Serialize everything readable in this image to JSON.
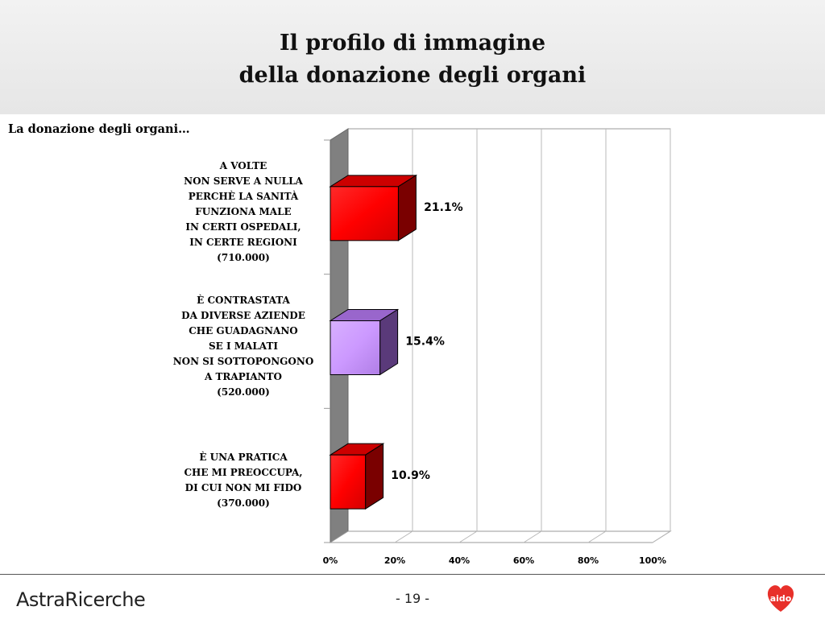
{
  "slide": {
    "title_line1": "Il profilo di immagine",
    "title_line2": "della donazione degli organi",
    "subtitle": "La donazione degli organi…"
  },
  "chart_data": {
    "type": "bar",
    "orientation": "horizontal",
    "three_d": true,
    "categories": [
      "A VOLTE\nNON SERVE A NULLA\nPERCHÈ LA SANITÀ\nFUNZIONA MALE\nIN CERTI OSPEDALI,\nIN CERTE REGIONI\n(710.000)",
      "È CONTRASTATA\nDA DIVERSE AZIENDE\nCHE GUADAGNANO\nSE I MALATI\nNON SI SOTTOPONGONO\nA TRAPIANTO\n(520.000)",
      "È UNA PRATICA\nCHE MI PREOCCUPA,\nDI CUI NON MI FIDO\n(370.000)"
    ],
    "values": [
      21.1,
      15.4,
      10.9
    ],
    "value_labels": [
      "21.1%",
      "15.4%",
      "10.9%"
    ],
    "bar_colors": [
      "#ff0000",
      "#cc99ff",
      "#ff0000"
    ],
    "xlim": [
      0,
      100
    ],
    "x_ticks": [
      0,
      20,
      40,
      60,
      80,
      100
    ],
    "x_tick_labels": [
      "0%",
      "20%",
      "40%",
      "60%",
      "80%",
      "100%"
    ],
    "grid": true
  },
  "footer": {
    "brand": "AstraRicerche",
    "page": "- 19 -",
    "logo_text": "aido",
    "logo_color": "#e8302a"
  }
}
